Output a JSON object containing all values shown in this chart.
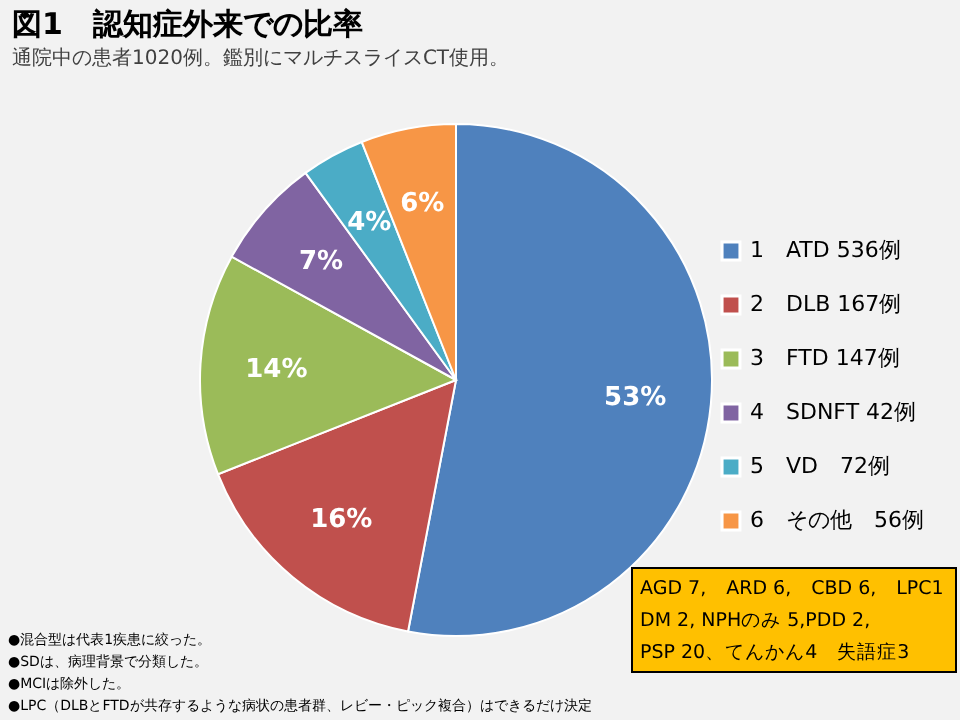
{
  "chart_data": {
    "type": "pie",
    "title": "図1　認知症外来での比率",
    "subtitle": "通院中の患者1020例。鑑別にマルチスライスCT使用。",
    "categories": [
      "1　ATD 536例",
      "2　DLB 167例",
      "3　FTD 147例",
      "4　SDNFT 42例",
      "5　VD　72例",
      "6　その他　56例"
    ],
    "values": [
      53,
      16,
      14,
      7,
      4,
      6
    ],
    "value_labels": [
      "53%",
      "16%",
      "14%",
      "7%",
      "4%",
      "6%"
    ],
    "colors": [
      "#4f81bd",
      "#c0504d",
      "#9bbb59",
      "#8064a2",
      "#4bacc6",
      "#f79646"
    ],
    "legend": "right",
    "annotations": [
      "AGD 7,　ARD 6,　CBD 6,　LPC1",
      "DM 2, NPHのみ 5,PDD 2,",
      "PSP 20、てんかん4　失語症3",
      "●混合型は代表1疾患に絞った。",
      "●SDは、病理背景で分類した。",
      "●MCIは除外した。",
      "●LPC（DLBとFTDが共存するような病状の患者群、レビー・ピック複合）はできるだけ決定"
    ]
  }
}
